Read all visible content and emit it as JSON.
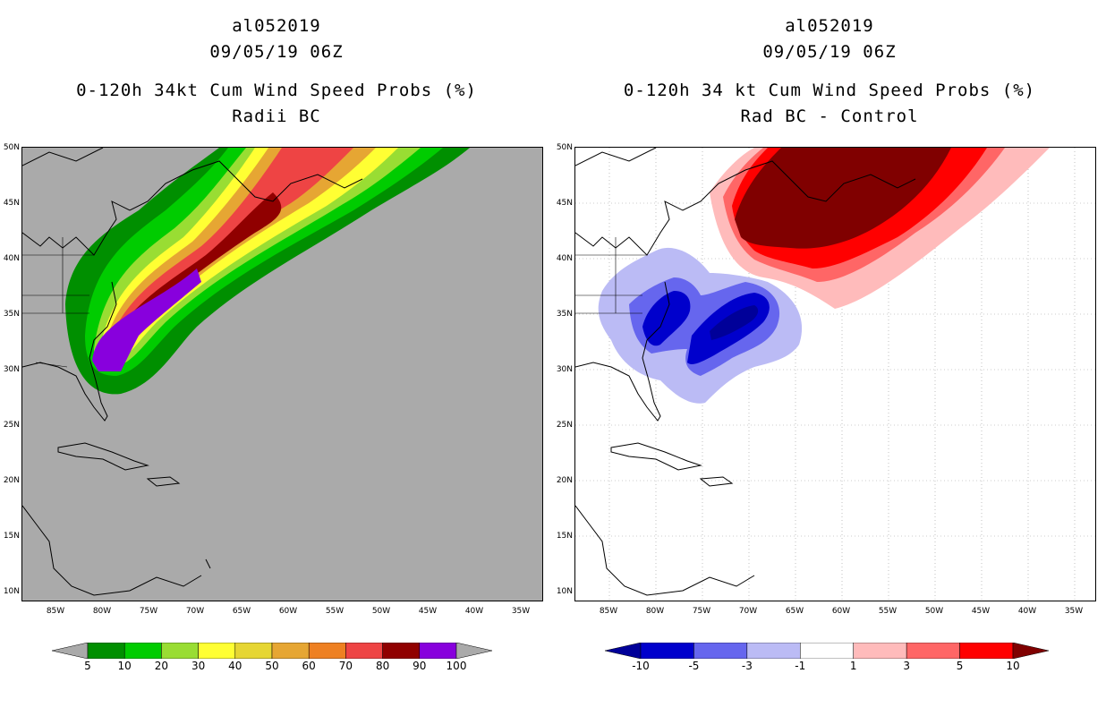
{
  "left": {
    "title_line1": "al052019",
    "title_line2": "09/05/19 06Z",
    "title_line3": "0-120h 34kt Cum Wind Speed Probs (%)",
    "title_line4": "Radii BC",
    "colorbar": {
      "colors": [
        "#008f00",
        "#00cc00",
        "#99dd33",
        "#ffff33",
        "#e6d633",
        "#e6a633",
        "#ee8022",
        "#ee4444",
        "#900000",
        "#8800dd"
      ],
      "labels": [
        "5",
        "10",
        "20",
        "30",
        "40",
        "50",
        "60",
        "70",
        "80",
        "90",
        "100"
      ],
      "end_color": "#aaaaaa"
    }
  },
  "right": {
    "title_line1": "al052019",
    "title_line2": "09/05/19 06Z",
    "title_line3": "0-120h 34 kt Cum Wind Speed Probs (%)",
    "title_line4": "Rad BC - Control",
    "colorbar": {
      "colors": [
        "#0000cc",
        "#6666ee",
        "#bbbbf5",
        "#ffffff",
        "#ffbbbb",
        "#ff6666",
        "#ff0000"
      ],
      "labels": [
        "-10",
        "-5",
        "-3",
        "-1",
        "1",
        "3",
        "5",
        "10"
      ],
      "low_end_color": "#000099",
      "high_end_color": "#800000"
    }
  },
  "axes": {
    "lat_labels": [
      "50N",
      "45N",
      "40N",
      "35N",
      "30N",
      "25N",
      "20N",
      "15N",
      "10N"
    ],
    "lon_labels": [
      "85W",
      "80W",
      "75W",
      "70W",
      "65W",
      "60W",
      "55W",
      "50W",
      "45W",
      "40W",
      "35W"
    ]
  }
}
